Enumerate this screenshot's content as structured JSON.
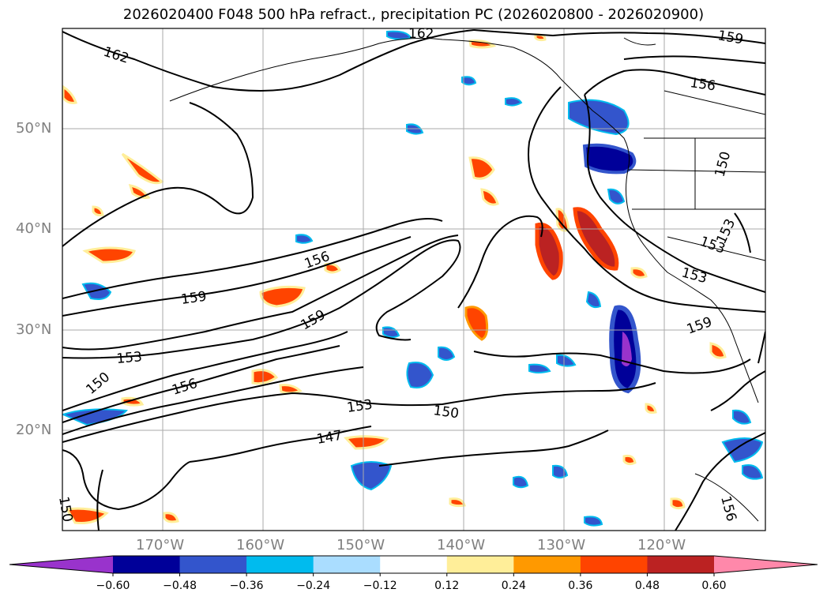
{
  "title": "2026020400 F048 500 hPa refract., precipitation PC (2026020800 - 2026020900)",
  "lat_labels": [
    "50°N",
    "40°N",
    "30°N",
    "20°N"
  ],
  "lon_labels": [
    "170°W",
    "160°W",
    "150°W",
    "140°W",
    "130°W",
    "120°W"
  ],
  "contour_labels": [
    "162",
    "162",
    "159",
    "156",
    "156",
    "159",
    "153",
    "150",
    "156",
    "159",
    "159",
    "153",
    "150",
    "153",
    "147",
    "150",
    "153",
    "153",
    "153",
    "159",
    "156",
    "150"
  ],
  "colorbar": {
    "ticks": [
      "−0.60",
      "−0.48",
      "−0.36",
      "−0.24",
      "−0.12",
      "0.12",
      "0.24",
      "0.36",
      "0.48",
      "0.60"
    ],
    "colors": [
      "#9933cc",
      "#000099",
      "#3355cc",
      "#00bbee",
      "#aaddff",
      "#ffffff",
      "#ffee99",
      "#ff9900",
      "#ff4400",
      "#bb2222",
      "#ff88aa"
    ]
  }
}
